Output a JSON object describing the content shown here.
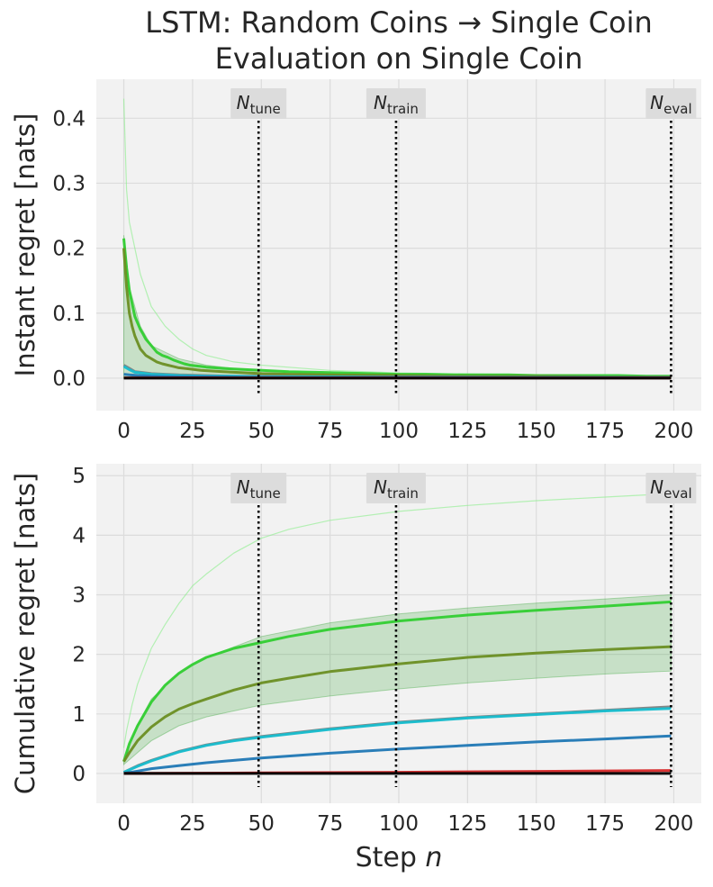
{
  "figure": {
    "title_line1": "LSTM: Random Coins → Single Coin",
    "title_line2": "Evaluation on Single Coin",
    "xlabel_main": "Step ",
    "xlabel_var": "n"
  },
  "chart_data": [
    {
      "type": "line",
      "ylabel": "Instant regret [nats]",
      "xlim": [
        -10,
        210
      ],
      "ylim": [
        -0.05,
        0.46
      ],
      "xticks": [
        0,
        25,
        50,
        75,
        100,
        125,
        150,
        175,
        200
      ],
      "yticks": [
        0.0,
        0.1,
        0.2,
        0.3,
        0.4
      ],
      "ytick_labels": [
        "0.0",
        "0.1",
        "0.2",
        "0.3",
        "0.4"
      ],
      "grid": true,
      "vlines": [
        {
          "x": 49,
          "base": "N",
          "sub": "tune"
        },
        {
          "x": 99,
          "base": "N",
          "sub": "train"
        },
        {
          "x": 199,
          "base": "N",
          "sub": "eval"
        }
      ],
      "series": [
        {
          "color": "#90ee90",
          "style": "thin",
          "x": [
            0,
            1,
            2,
            4,
            6,
            10,
            15,
            20,
            25,
            30,
            40,
            50,
            75,
            100,
            150,
            199
          ],
          "y": [
            0.43,
            0.29,
            0.24,
            0.2,
            0.16,
            0.11,
            0.08,
            0.06,
            0.045,
            0.035,
            0.025,
            0.02,
            0.012,
            0.008,
            0.005,
            0.003
          ]
        },
        {
          "color": "#2ca02c",
          "style": "band",
          "x": [
            0,
            2,
            4,
            6,
            10,
            15,
            20,
            25,
            30,
            40,
            50,
            75,
            100,
            150,
            199
          ],
          "y_low": [
            0.0,
            0.0,
            0.0,
            0.0,
            0.0,
            0.0,
            0.0,
            0.0,
            0.0,
            0.0,
            0.0,
            0.0,
            0.0,
            0.0,
            0.0
          ],
          "y_high": [
            0.22,
            0.14,
            0.11,
            0.08,
            0.05,
            0.04,
            0.03,
            0.025,
            0.02,
            0.015,
            0.012,
            0.008,
            0.006,
            0.004,
            0.003
          ]
        },
        {
          "color": "#32cd32",
          "style": "main",
          "x": [
            0,
            1,
            2,
            3,
            4,
            5,
            6,
            7,
            8,
            10,
            12,
            14,
            16,
            18,
            20,
            22,
            24,
            26,
            28,
            30,
            33,
            36,
            40,
            45,
            50,
            55,
            60,
            70,
            80,
            90,
            100,
            110,
            120,
            130,
            140,
            150,
            160,
            170,
            180,
            190,
            199
          ],
          "y": [
            0.215,
            0.17,
            0.135,
            0.115,
            0.095,
            0.085,
            0.075,
            0.068,
            0.06,
            0.05,
            0.04,
            0.035,
            0.032,
            0.028,
            0.025,
            0.022,
            0.02,
            0.019,
            0.018,
            0.017,
            0.016,
            0.015,
            0.014,
            0.013,
            0.012,
            0.011,
            0.01,
            0.009,
            0.008,
            0.007,
            0.006,
            0.006,
            0.005,
            0.005,
            0.005,
            0.004,
            0.004,
            0.004,
            0.004,
            0.003,
            0.003
          ]
        },
        {
          "color": "#6b8e23",
          "style": "main",
          "x": [
            0,
            1,
            2,
            3,
            4,
            5,
            6,
            8,
            10,
            12,
            14,
            16,
            18,
            20,
            24,
            28,
            32,
            36,
            40,
            45,
            50,
            60,
            75,
            100,
            125,
            150,
            175,
            199
          ],
          "y": [
            0.2,
            0.14,
            0.1,
            0.08,
            0.065,
            0.055,
            0.045,
            0.035,
            0.03,
            0.025,
            0.022,
            0.02,
            0.018,
            0.016,
            0.014,
            0.012,
            0.011,
            0.01,
            0.009,
            0.008,
            0.007,
            0.006,
            0.005,
            0.004,
            0.003,
            0.003,
            0.002,
            0.002
          ]
        },
        {
          "color": "#7f7f7f",
          "style": "main",
          "x": [
            0,
            2,
            4,
            6,
            8,
            10,
            15,
            20,
            30,
            40,
            50,
            75,
            100,
            150,
            199
          ],
          "y": [
            0.02,
            0.015,
            0.01,
            0.009,
            0.008,
            0.007,
            0.006,
            0.005,
            0.004,
            0.003,
            0.003,
            0.002,
            0.002,
            0.001,
            0.001
          ]
        },
        {
          "color": "#17becf",
          "style": "main",
          "x": [
            0,
            2,
            4,
            6,
            8,
            10,
            15,
            20,
            30,
            40,
            50,
            75,
            100,
            150,
            199
          ],
          "y": [
            0.018,
            0.013,
            0.009,
            0.008,
            0.007,
            0.006,
            0.005,
            0.004,
            0.003,
            0.003,
            0.002,
            0.002,
            0.001,
            0.001,
            0.001
          ]
        },
        {
          "color": "#1f77b4",
          "style": "main",
          "x": [
            0,
            2,
            5,
            10,
            20,
            30,
            50,
            100,
            150,
            199
          ],
          "y": [
            0.006,
            0.005,
            0.004,
            0.003,
            0.002,
            0.002,
            0.001,
            0.001,
            0.001,
            0.0005
          ]
        },
        {
          "color": "#d62728",
          "style": "main",
          "x": [
            0,
            50,
            100,
            150,
            199
          ],
          "y": [
            0.0005,
            0.0004,
            0.0003,
            0.0003,
            0.0003
          ]
        },
        {
          "color": "#000000",
          "style": "main",
          "x": [
            0,
            199
          ],
          "y": [
            0.0,
            0.0
          ]
        }
      ]
    },
    {
      "type": "line",
      "ylabel": "Cumulative regret [nats]",
      "xlim": [
        -10,
        210
      ],
      "ylim": [
        -0.5,
        5.2
      ],
      "xticks": [
        0,
        25,
        50,
        75,
        100,
        125,
        150,
        175,
        200
      ],
      "yticks": [
        0,
        1,
        2,
        3,
        4,
        5
      ],
      "ytick_labels": [
        "0",
        "1",
        "2",
        "3",
        "4",
        "5"
      ],
      "grid": true,
      "vlines": [
        {
          "x": 49,
          "base": "N",
          "sub": "tune"
        },
        {
          "x": 99,
          "base": "N",
          "sub": "train"
        },
        {
          "x": 199,
          "base": "N",
          "sub": "eval"
        }
      ],
      "series": [
        {
          "color": "#90ee90",
          "style": "thin",
          "x": [
            0,
            1,
            3,
            5,
            10,
            15,
            20,
            25,
            30,
            40,
            50,
            60,
            75,
            100,
            125,
            150,
            175,
            199
          ],
          "y": [
            0.43,
            0.72,
            1.15,
            1.5,
            2.1,
            2.5,
            2.85,
            3.15,
            3.35,
            3.7,
            3.95,
            4.1,
            4.25,
            4.4,
            4.5,
            4.58,
            4.64,
            4.7
          ]
        },
        {
          "color": "#2ca02c",
          "style": "band",
          "x": [
            0,
            5,
            10,
            20,
            30,
            50,
            75,
            100,
            125,
            150,
            175,
            199
          ],
          "y_low": [
            0.15,
            0.35,
            0.55,
            0.8,
            0.95,
            1.15,
            1.3,
            1.42,
            1.52,
            1.6,
            1.67,
            1.72
          ],
          "y_high": [
            0.22,
            0.82,
            1.25,
            1.68,
            1.95,
            2.3,
            2.53,
            2.68,
            2.78,
            2.86,
            2.93,
            3.0
          ]
        },
        {
          "color": "#32cd32",
          "style": "main",
          "x": [
            0,
            2,
            5,
            10,
            15,
            20,
            25,
            30,
            40,
            50,
            60,
            75,
            100,
            125,
            150,
            175,
            199
          ],
          "y": [
            0.2,
            0.5,
            0.8,
            1.2,
            1.48,
            1.68,
            1.83,
            1.95,
            2.1,
            2.2,
            2.3,
            2.42,
            2.56,
            2.66,
            2.74,
            2.81,
            2.88
          ]
        },
        {
          "color": "#6b8e23",
          "style": "main",
          "x": [
            0,
            2,
            5,
            10,
            15,
            20,
            25,
            30,
            40,
            50,
            60,
            75,
            100,
            125,
            150,
            175,
            199
          ],
          "y": [
            0.2,
            0.35,
            0.55,
            0.78,
            0.95,
            1.08,
            1.17,
            1.25,
            1.4,
            1.52,
            1.6,
            1.71,
            1.84,
            1.95,
            2.02,
            2.08,
            2.13
          ]
        },
        {
          "color": "#7f7f7f",
          "style": "main",
          "x": [
            0,
            5,
            10,
            20,
            30,
            40,
            50,
            75,
            100,
            125,
            150,
            175,
            199
          ],
          "y": [
            0.02,
            0.13,
            0.22,
            0.37,
            0.48,
            0.56,
            0.62,
            0.75,
            0.86,
            0.94,
            1.0,
            1.06,
            1.12
          ]
        },
        {
          "color": "#17becf",
          "style": "main",
          "x": [
            0,
            5,
            10,
            20,
            30,
            40,
            50,
            75,
            100,
            125,
            150,
            175,
            199
          ],
          "y": [
            0.02,
            0.12,
            0.21,
            0.36,
            0.47,
            0.55,
            0.61,
            0.74,
            0.85,
            0.93,
            0.99,
            1.05,
            1.09
          ]
        },
        {
          "color": "#1f77b4",
          "style": "main",
          "x": [
            0,
            5,
            10,
            20,
            30,
            40,
            50,
            75,
            100,
            125,
            150,
            175,
            199
          ],
          "y": [
            0.0,
            0.04,
            0.08,
            0.13,
            0.18,
            0.22,
            0.26,
            0.34,
            0.41,
            0.47,
            0.53,
            0.58,
            0.63
          ]
        },
        {
          "color": "#d62728",
          "style": "main",
          "x": [
            0,
            50,
            100,
            150,
            199
          ],
          "y": [
            0.0,
            0.01,
            0.02,
            0.035,
            0.05
          ]
        },
        {
          "color": "#000000",
          "style": "main",
          "x": [
            0,
            199
          ],
          "y": [
            0.0,
            0.0
          ]
        }
      ]
    }
  ]
}
